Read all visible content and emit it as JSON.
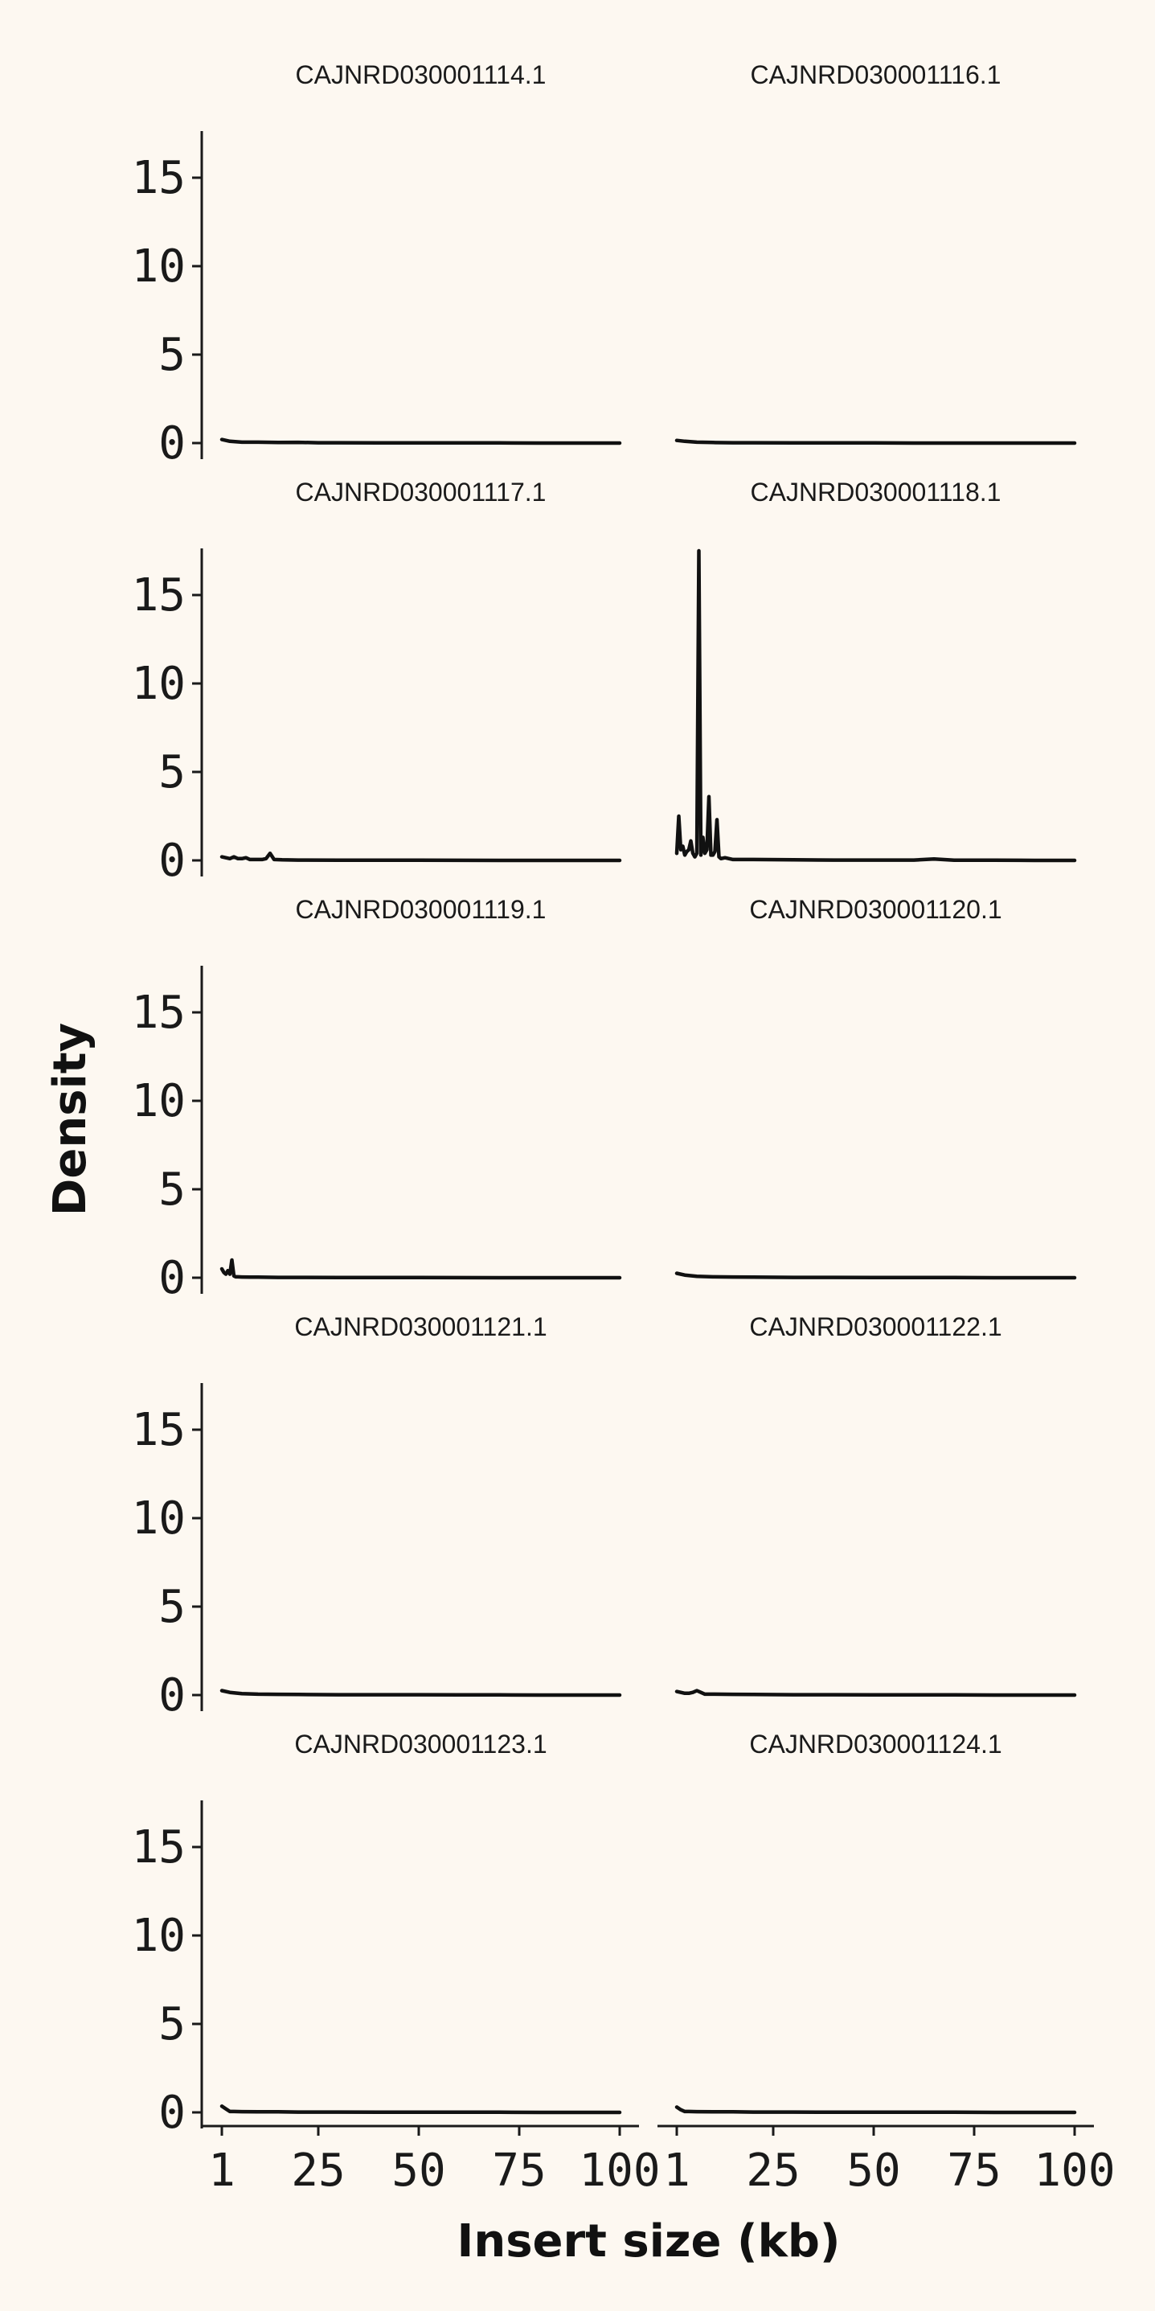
{
  "chart_data": {
    "type": "line",
    "layout": "facet grid, 5 rows x 2 columns, shared axes",
    "xlabel": "Insert size (kb)",
    "ylabel": "Density",
    "ylim": [
      0,
      18
    ],
    "xlim": [
      1,
      100
    ],
    "x_ticks": [
      1,
      25,
      50,
      75,
      100
    ],
    "x_tick_labels": [
      "1",
      "25",
      "50",
      "75",
      "100"
    ],
    "y_ticks": [
      0,
      5,
      10,
      15
    ],
    "y_tick_labels": [
      "0",
      "5",
      "10",
      "15"
    ],
    "grid": false,
    "line_color": "#111111",
    "background": "#fdf8f1",
    "panels": [
      {
        "title": "CAJNRD030001114.1",
        "x": [
          1,
          3,
          6,
          10,
          15,
          20,
          25,
          30,
          40,
          50,
          60,
          70,
          80,
          90,
          100
        ],
        "y": [
          0.2,
          0.1,
          0.05,
          0.05,
          0.03,
          0.04,
          0.02,
          0.02,
          0.01,
          0.01,
          0.01,
          0.01,
          0.0,
          0.0,
          0.0
        ]
      },
      {
        "title": "CAJNRD030001116.1",
        "x": [
          1,
          3,
          6,
          10,
          15,
          20,
          30,
          40,
          50,
          60,
          70,
          80,
          90,
          100
        ],
        "y": [
          0.15,
          0.1,
          0.05,
          0.03,
          0.02,
          0.02,
          0.01,
          0.01,
          0.01,
          0.0,
          0.0,
          0.0,
          0.0,
          0.0
        ]
      },
      {
        "title": "CAJNRD030001117.1",
        "x": [
          1,
          2,
          3,
          4,
          5,
          6,
          7,
          8,
          10,
          11,
          12,
          13,
          14,
          16,
          20,
          30,
          50,
          70,
          100
        ],
        "y": [
          0.2,
          0.15,
          0.1,
          0.2,
          0.1,
          0.1,
          0.15,
          0.05,
          0.05,
          0.05,
          0.1,
          0.4,
          0.05,
          0.03,
          0.02,
          0.01,
          0.01,
          0.0,
          0.0
        ]
      },
      {
        "title": "CAJNRD030001118.1",
        "x": [
          1,
          1.5,
          2,
          2.5,
          3,
          3.5,
          4,
          4.5,
          5,
          5.5,
          6,
          6.5,
          7,
          7.5,
          8,
          8.5,
          9,
          9.5,
          10,
          10.5,
          11,
          11.5,
          12,
          13,
          15,
          20,
          30,
          40,
          50,
          60,
          65,
          70,
          80,
          90,
          100
        ],
        "y": [
          0.4,
          2.5,
          0.6,
          0.8,
          0.3,
          0.5,
          0.6,
          1.1,
          0.4,
          0.2,
          0.4,
          17.5,
          0.3,
          1.3,
          0.4,
          0.6,
          3.6,
          0.3,
          0.3,
          0.5,
          2.3,
          0.2,
          0.1,
          0.15,
          0.05,
          0.05,
          0.03,
          0.02,
          0.02,
          0.02,
          0.08,
          0.01,
          0.01,
          0.0,
          0.0
        ]
      },
      {
        "title": "CAJNRD030001119.1",
        "x": [
          1,
          1.5,
          2,
          2.5,
          3,
          3.5,
          4,
          4.5,
          5,
          6,
          8,
          10,
          15,
          20,
          30,
          50,
          70,
          100
        ],
        "y": [
          0.5,
          0.3,
          0.2,
          0.4,
          0.2,
          1.0,
          0.1,
          0.05,
          0.05,
          0.04,
          0.03,
          0.03,
          0.02,
          0.02,
          0.01,
          0.01,
          0.0,
          0.0
        ]
      },
      {
        "title": "CAJNRD030001120.1",
        "x": [
          1,
          3,
          6,
          10,
          15,
          20,
          30,
          40,
          50,
          60,
          70,
          80,
          90,
          100
        ],
        "y": [
          0.25,
          0.15,
          0.08,
          0.05,
          0.04,
          0.03,
          0.02,
          0.02,
          0.01,
          0.01,
          0.01,
          0.0,
          0.0,
          0.0
        ]
      },
      {
        "title": "CAJNRD030001121.1",
        "x": [
          1,
          3,
          6,
          10,
          15,
          20,
          30,
          40,
          50,
          60,
          70,
          80,
          90,
          100
        ],
        "y": [
          0.25,
          0.15,
          0.08,
          0.05,
          0.04,
          0.03,
          0.02,
          0.02,
          0.02,
          0.01,
          0.01,
          0.0,
          0.0,
          0.0
        ]
      },
      {
        "title": "CAJNRD030001122.1",
        "x": [
          1,
          2,
          3,
          4,
          5,
          6,
          7,
          8,
          10,
          15,
          20,
          30,
          40,
          50,
          60,
          70,
          80,
          90,
          100
        ],
        "y": [
          0.2,
          0.15,
          0.1,
          0.1,
          0.15,
          0.25,
          0.15,
          0.05,
          0.05,
          0.04,
          0.03,
          0.02,
          0.02,
          0.01,
          0.01,
          0.01,
          0.0,
          0.0,
          0.0
        ]
      },
      {
        "title": "CAJNRD030001123.1",
        "x": [
          1,
          2,
          3,
          4,
          6,
          10,
          15,
          20,
          30,
          40,
          50,
          60,
          70,
          80,
          90,
          100
        ],
        "y": [
          0.35,
          0.2,
          0.05,
          0.05,
          0.04,
          0.03,
          0.03,
          0.02,
          0.02,
          0.01,
          0.01,
          0.01,
          0.01,
          0.0,
          0.0,
          0.0
        ]
      },
      {
        "title": "CAJNRD030001124.1",
        "x": [
          1,
          2,
          3,
          4,
          6,
          10,
          15,
          20,
          30,
          40,
          50,
          60,
          70,
          80,
          90,
          100
        ],
        "y": [
          0.3,
          0.15,
          0.05,
          0.05,
          0.04,
          0.03,
          0.03,
          0.02,
          0.02,
          0.01,
          0.01,
          0.01,
          0.01,
          0.0,
          0.0,
          0.0
        ]
      }
    ]
  }
}
